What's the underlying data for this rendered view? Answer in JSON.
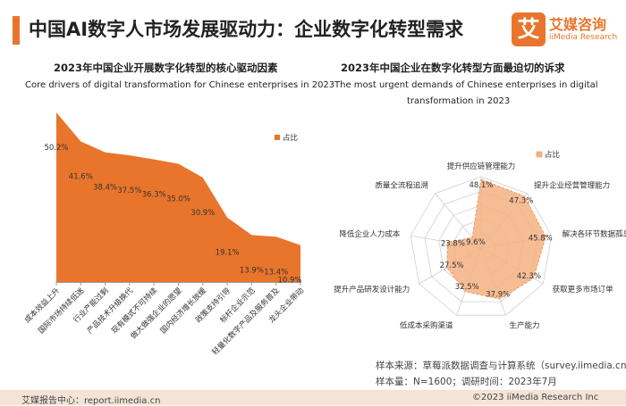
{
  "header": {
    "title": "中国AI数字人市场发展驱动力：企业数字化转型需求",
    "accent_color": "#e8752b"
  },
  "logo": {
    "glyph": "艾",
    "name_cn": "艾媒咨询",
    "name_en": "iiMedia Research"
  },
  "left_chart": {
    "title_cn": "2023年中国企业开展数字化转型的核心驱动因素",
    "title_en": "Core drivers of digital transformation for Chinese enterprises in 2023"
  },
  "right_chart": {
    "title_cn": "2023年中国企业在数字化转型方面最迫切的诉求",
    "title_en_line1": "The most urgent demands of Chinese enterprises in digital",
    "title_en_line2": "transformation in 2023"
  },
  "chart_data": [
    {
      "type": "area",
      "legend": "占比",
      "legend_position": "top-right",
      "color": "#e8752b",
      "categories": [
        "成本效益上升",
        "国际市场持续低迷",
        "行业产能过剩",
        "产品技术升级换代",
        "现有模式不可持续",
        "做大做强企业的愿望",
        "国内经济增长放缓",
        "政策支持引导",
        "标杆企业示范",
        "轻量化数字产品及服务普及",
        "龙头企业带动"
      ],
      "value_labels": [
        "50.2%",
        "41.6%",
        "38.4%",
        "37.5%",
        "36.3%",
        "35.0%",
        "30.9%",
        "19.1%",
        "13.9%",
        "13.4%",
        "10.9%"
      ],
      "values": [
        50.2,
        41.6,
        38.4,
        37.5,
        36.3,
        35.0,
        30.9,
        19.1,
        13.9,
        13.4,
        10.9
      ],
      "ylim": [
        0,
        55
      ]
    },
    {
      "type": "radar",
      "legend": "占比",
      "legend_position": "top-right",
      "color": "#f4b183",
      "categories": [
        "提升供应链管理能力",
        "提升企业经营管理能力",
        "解决各环节数据孤岛",
        "获取更多市场订单",
        "生产能力",
        "低成本采购渠道",
        "提升产品研发设计能力",
        "降低企业人力成本",
        "质量全流程追溯"
      ],
      "value_labels": [
        "48.1%",
        "47.3%",
        "45.8%",
        "42.3%",
        "37.9%",
        "32.5%",
        "27.5%",
        "23.8%",
        "9.6%"
      ],
      "values": [
        48.1,
        47.3,
        45.8,
        42.3,
        37.9,
        32.5,
        27.5,
        23.8,
        9.6
      ],
      "rmax": 50
    }
  ],
  "footer": {
    "sample_source": "样本来源：草莓派数据调查与计算系统（survey.iimedia.cn）",
    "sample_size": "样本量：N=1600；调研时间：2023年7月",
    "report_center": "艾媒报告中心：report.iimedia.cn",
    "copyright": "©2023 iiMedia Research Inc"
  }
}
